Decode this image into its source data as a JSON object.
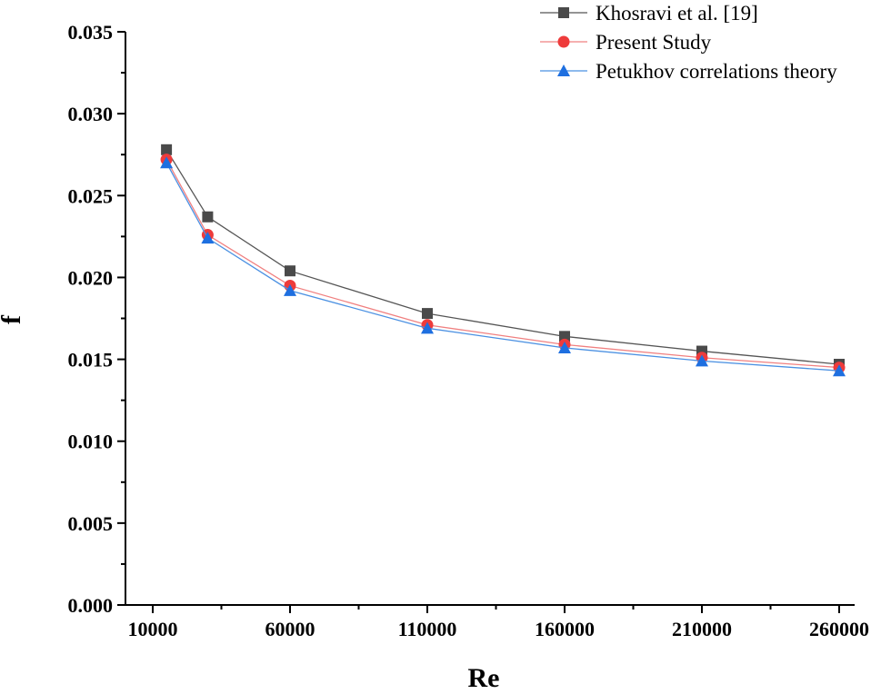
{
  "chart_data": {
    "type": "line",
    "title": "",
    "xlabel": "Re",
    "ylabel": "f",
    "xlim": [
      0,
      260000
    ],
    "ylim": [
      0,
      0.035
    ],
    "x_ticks": [
      10000,
      60000,
      110000,
      160000,
      210000,
      260000
    ],
    "x_tick_labels": [
      "10000",
      "60000",
      "110000",
      "160000",
      "210000",
      "260000"
    ],
    "y_ticks": [
      0,
      0.005,
      0.01,
      0.015,
      0.02,
      0.025,
      0.03,
      0.035
    ],
    "y_tick_labels": [
      "0.000",
      "0.005",
      "0.010",
      "0.015",
      "0.020",
      "0.025",
      "0.030",
      "0.035"
    ],
    "x": [
      15000,
      30000,
      60000,
      110000,
      160000,
      210000,
      260000
    ],
    "legend_position": "top-right",
    "grid": false,
    "series": [
      {
        "name": "Khosravi et al. [19]",
        "marker": "square",
        "color": "#4a4a4a",
        "line_color": "#555555",
        "values": [
          0.0278,
          0.0237,
          0.0204,
          0.0178,
          0.0164,
          0.0155,
          0.0147
        ]
      },
      {
        "name": "Present Study",
        "marker": "circle",
        "color": "#ee3b3b",
        "line_color": "#f08080",
        "values": [
          0.0272,
          0.0226,
          0.0195,
          0.0171,
          0.0159,
          0.0151,
          0.0145
        ]
      },
      {
        "name": "Petukhov correlations theory",
        "marker": "triangle",
        "color": "#1e6fe0",
        "line_color": "#4a90e2",
        "values": [
          0.027,
          0.0224,
          0.0192,
          0.0169,
          0.0157,
          0.0149,
          0.0143
        ]
      }
    ]
  }
}
